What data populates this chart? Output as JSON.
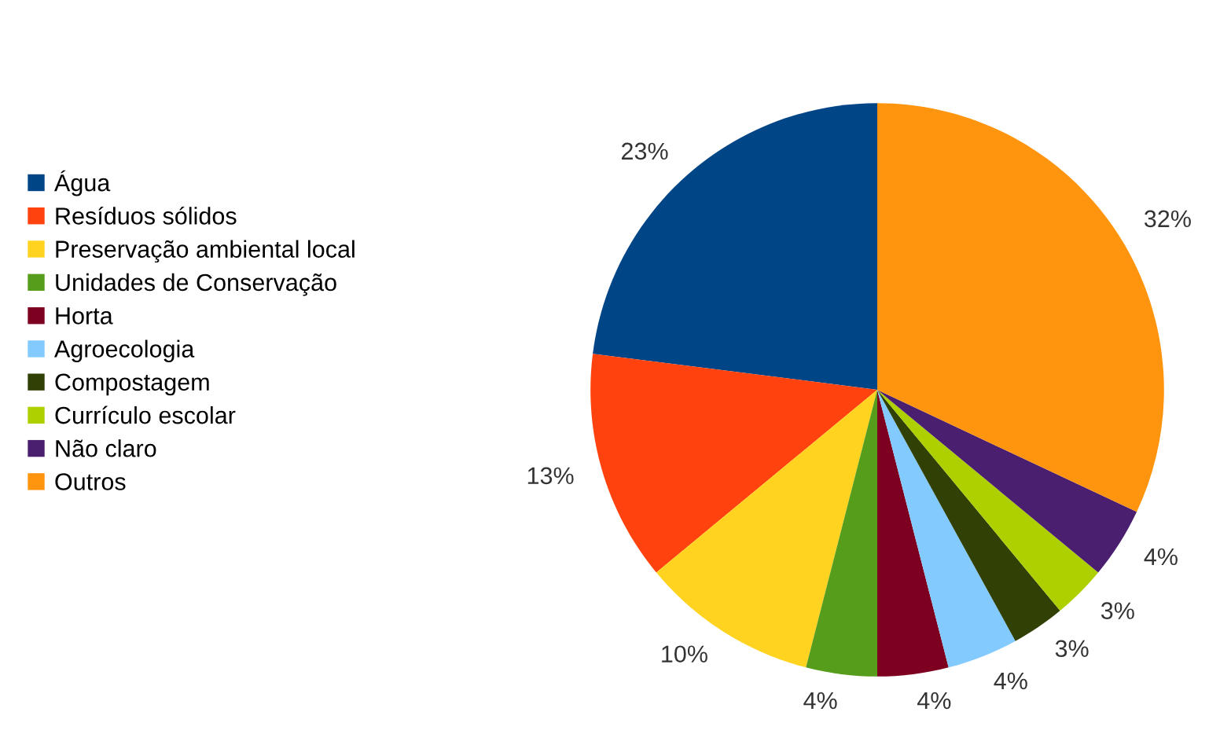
{
  "chart_data": {
    "type": "pie",
    "categories": [
      "Água",
      "Resíduos sólidos",
      "Preservação ambiental local",
      "Unidades de Conservação",
      "Horta",
      "Agroecologia",
      "Compostagem",
      "Currículo escolar",
      "Não claro",
      "Outros"
    ],
    "values": [
      23,
      13,
      10,
      4,
      4,
      4,
      3,
      3,
      4,
      32
    ],
    "colors": [
      "#004586",
      "#ff420e",
      "#ffd320",
      "#579d1c",
      "#7e0021",
      "#83caff",
      "#314004",
      "#aecf00",
      "#4b1f6f",
      "#ff950e"
    ],
    "value_labels": [
      "23%",
      "13%",
      "10%",
      "4%",
      "4%",
      "4%",
      "3%",
      "3%",
      "4%",
      "32%"
    ],
    "legend": "left"
  }
}
